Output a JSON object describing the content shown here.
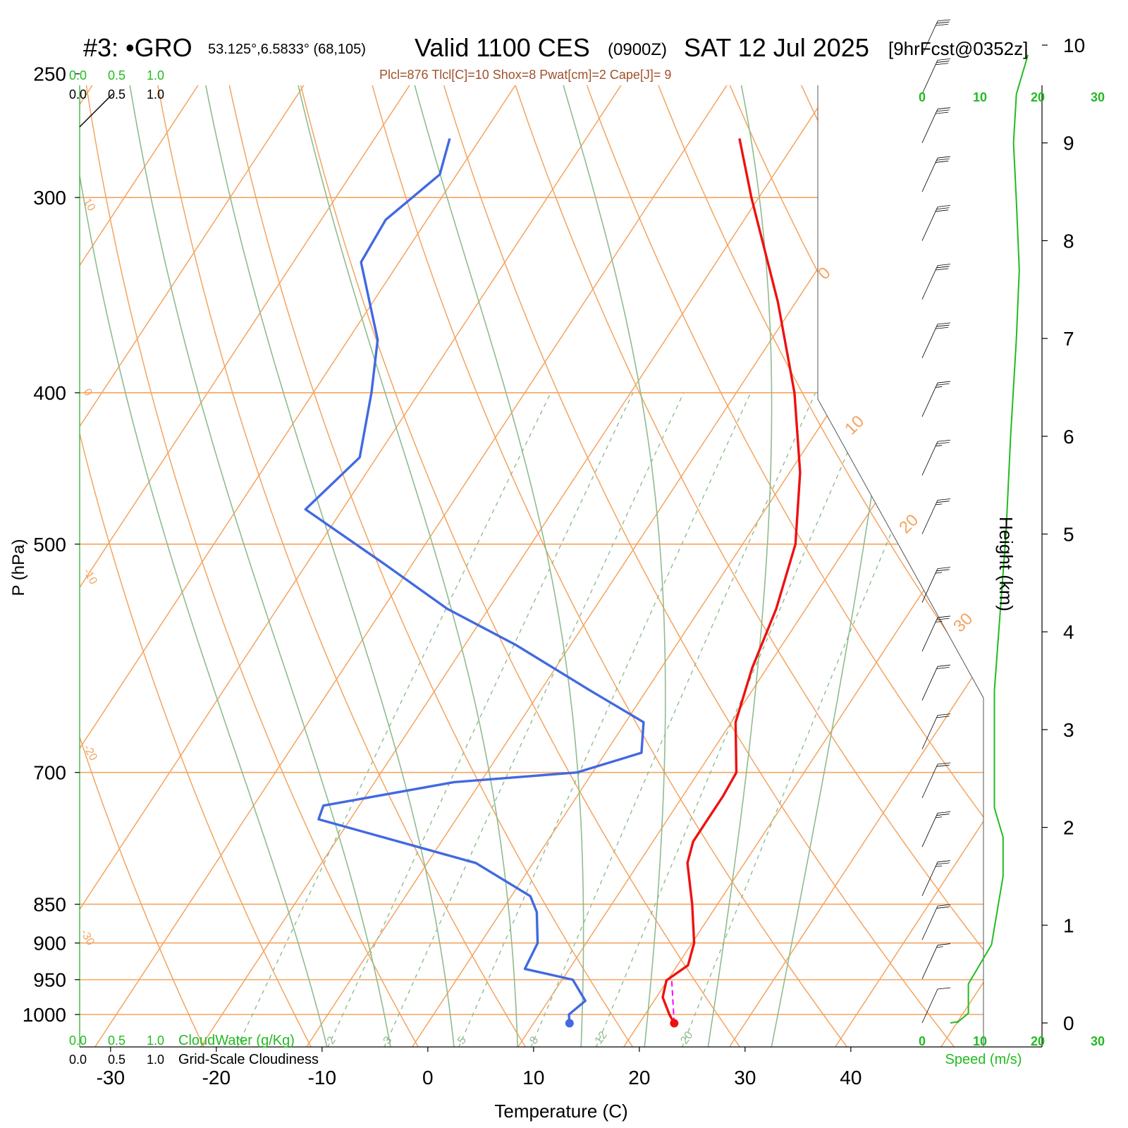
{
  "title": {
    "station_id": "#3:",
    "station_marker": "•GRO",
    "coords": "53.125°,6.5833° (68,105)",
    "valid": "Valid 1100 CES",
    "zulu": "(0900Z)",
    "date": "SAT 12 Jul 2025",
    "forecast": "[9hrFcst@0352z]"
  },
  "indices": "Plcl=876 Tlcl[C]=10 Shox=8 Pwat[cm]=2 Cape[J]= 9",
  "scale_top_green": [
    "0.0",
    "0.5",
    "1.0"
  ],
  "scale_top_black": [
    "0.0",
    "0.5",
    "1.0"
  ],
  "scale_bottom_green": [
    "0.0",
    "0.5",
    "1.0"
  ],
  "scale_bottom_black": [
    "0.0",
    "0.5",
    "1.0"
  ],
  "cloudwater_label": "CloudWater (g/Kg)",
  "cloudiness_label": "Grid-Scale Cloudiness",
  "speed_label": "Speed (m/s)",
  "speed_ticks_top": [
    "0",
    "10",
    "20",
    "30"
  ],
  "speed_ticks_bottom": [
    "0",
    "10",
    "20",
    "30"
  ],
  "colors": {
    "temperature": "#ee1111",
    "dewpoint": "#4169e1",
    "isotherm": "#f4a460",
    "dry_adiabat": "#f4a460",
    "moist_adiabat": "#8fbc8f",
    "mixing_ratio": "#8fbc8f",
    "speed": "#22bb22",
    "parcel": "#ff00ff"
  },
  "chart_data": {
    "type": "line",
    "xlabel": "Temperature (C)",
    "ylabel": "P (hPa)",
    "y2label": "Height (km)",
    "x_ticks": [
      "-30",
      "-20",
      "-10",
      "0",
      "10",
      "20",
      "30",
      "40"
    ],
    "p_ticks": [
      "250",
      "300",
      "400",
      "500",
      "700",
      "850",
      "900",
      "950",
      "1000"
    ],
    "height_ticks": [
      "0",
      "1",
      "2",
      "3",
      "4",
      "5",
      "6",
      "7",
      "8",
      "9",
      "10"
    ],
    "isotherm_labels": [
      "10",
      "0",
      "-10",
      "-20",
      "-30",
      "0",
      "10",
      "20",
      "30"
    ],
    "mixing_ratio_labels": [
      "1",
      "2",
      "3",
      "5",
      "8",
      "12",
      "20"
    ],
    "temperature_profile": [
      {
        "p": 1013,
        "t": 23.3
      },
      {
        "p": 1000,
        "t": 22.3
      },
      {
        "p": 975,
        "t": 20.6
      },
      {
        "p": 951,
        "t": 19.9
      },
      {
        "p": 930,
        "t": 21.0
      },
      {
        "p": 900,
        "t": 20.2
      },
      {
        "p": 850,
        "t": 17.6
      },
      {
        "p": 800,
        "t": 14.6
      },
      {
        "p": 775,
        "t": 13.8
      },
      {
        "p": 750,
        "t": 13.8
      },
      {
        "p": 725,
        "t": 13.8
      },
      {
        "p": 700,
        "t": 13.6
      },
      {
        "p": 650,
        "t": 10.4
      },
      {
        "p": 600,
        "t": 8.6
      },
      {
        "p": 550,
        "t": 7.2
      },
      {
        "p": 500,
        "t": 5.0
      },
      {
        "p": 450,
        "t": 1.0
      },
      {
        "p": 400,
        "t": -4.5
      },
      {
        "p": 350,
        "t": -11.7
      },
      {
        "p": 300,
        "t": -20.7
      },
      {
        "p": 275,
        "t": -25.5
      }
    ],
    "dewpoint_profile": [
      {
        "p": 1013,
        "t": 13.4
      },
      {
        "p": 1000,
        "t": 12.8
      },
      {
        "p": 980,
        "t": 13.5
      },
      {
        "p": 950,
        "t": 11.0
      },
      {
        "p": 935,
        "t": 5.8
      },
      {
        "p": 900,
        "t": 5.4
      },
      {
        "p": 860,
        "t": 3.4
      },
      {
        "p": 840,
        "t": 1.8
      },
      {
        "p": 800,
        "t": -5.4
      },
      {
        "p": 750,
        "t": -23.0
      },
      {
        "p": 735,
        "t": -23.4
      },
      {
        "p": 710,
        "t": -12.5
      },
      {
        "p": 700,
        "t": -1.5
      },
      {
        "p": 680,
        "t": 3.4
      },
      {
        "p": 650,
        "t": 1.7
      },
      {
        "p": 620,
        "t": -5.4
      },
      {
        "p": 580,
        "t": -15.2
      },
      {
        "p": 550,
        "t": -23.9
      },
      {
        "p": 515,
        "t": -32.6
      },
      {
        "p": 475,
        "t": -43.5
      },
      {
        "p": 440,
        "t": -41.6
      },
      {
        "p": 400,
        "t": -44.5
      },
      {
        "p": 370,
        "t": -47.2
      },
      {
        "p": 330,
        "t": -53.6
      },
      {
        "p": 310,
        "t": -53.9
      },
      {
        "p": 290,
        "t": -51.6
      },
      {
        "p": 275,
        "t": -52.9
      }
    ],
    "parcel_segment": [
      {
        "p": 1013,
        "t": 23.3
      },
      {
        "p": 951,
        "t": 20.4
      }
    ],
    "wind_speed_profile": [
      {
        "z": 0.0,
        "v": 6
      },
      {
        "z": 0.1,
        "v": 8
      },
      {
        "z": 0.4,
        "v": 8
      },
      {
        "z": 0.5,
        "v": 9
      },
      {
        "z": 0.8,
        "v": 12
      },
      {
        "z": 1.5,
        "v": 14
      },
      {
        "z": 1.9,
        "v": 14
      },
      {
        "z": 2.2,
        "v": 12.5
      },
      {
        "z": 2.8,
        "v": 12.5
      },
      {
        "z": 3.4,
        "v": 12.5
      },
      {
        "z": 3.8,
        "v": 13
      },
      {
        "z": 4.2,
        "v": 13.5
      },
      {
        "z": 5.0,
        "v": 14.5
      },
      {
        "z": 6.0,
        "v": 15.3
      },
      {
        "z": 7.0,
        "v": 16.3
      },
      {
        "z": 7.7,
        "v": 16.8
      },
      {
        "z": 8.4,
        "v": 16.3
      },
      {
        "z": 9.0,
        "v": 15.8
      },
      {
        "z": 9.5,
        "v": 16.3
      },
      {
        "z": 9.9,
        "v": 18.3
      }
    ],
    "wind_barbs": [
      {
        "z": 0.0,
        "speed_ms": 6
      },
      {
        "z": 0.45,
        "speed_ms": 8
      },
      {
        "z": 0.85,
        "speed_ms": 12
      },
      {
        "z": 1.3,
        "speed_ms": 14
      },
      {
        "z": 1.8,
        "speed_ms": 14
      },
      {
        "z": 2.3,
        "speed_ms": 12
      },
      {
        "z": 2.8,
        "speed_ms": 12
      },
      {
        "z": 3.3,
        "speed_ms": 12
      },
      {
        "z": 3.8,
        "speed_ms": 13
      },
      {
        "z": 4.3,
        "speed_ms": 13
      },
      {
        "z": 5.0,
        "speed_ms": 14
      },
      {
        "z": 5.6,
        "speed_ms": 15
      },
      {
        "z": 6.2,
        "speed_ms": 15
      },
      {
        "z": 6.8,
        "speed_ms": 16
      },
      {
        "z": 7.4,
        "speed_ms": 17
      },
      {
        "z": 8.0,
        "speed_ms": 16
      },
      {
        "z": 8.5,
        "speed_ms": 16
      },
      {
        "z": 9.0,
        "speed_ms": 16
      },
      {
        "z": 9.5,
        "speed_ms": 16
      },
      {
        "z": 9.9,
        "speed_ms": 18
      }
    ]
  }
}
